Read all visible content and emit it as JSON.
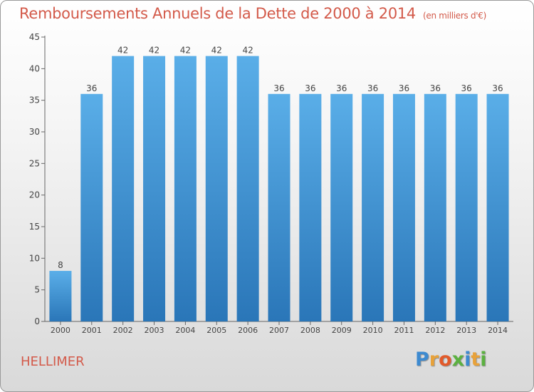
{
  "chart_data": {
    "type": "bar",
    "title": "Remboursements Annuels de la Dette de 2000 à 2014",
    "unit": "(en milliers d'€)",
    "categories": [
      "2000",
      "2001",
      "2002",
      "2003",
      "2004",
      "2005",
      "2006",
      "2007",
      "2008",
      "2009",
      "2010",
      "2011",
      "2012",
      "2013",
      "2014"
    ],
    "values": [
      8,
      36,
      42,
      42,
      42,
      42,
      42,
      36,
      36,
      36,
      36,
      36,
      36,
      36,
      36
    ],
    "ylim": [
      0,
      45
    ],
    "yticks": [
      0,
      5,
      10,
      15,
      20,
      25,
      30,
      35,
      40,
      45
    ],
    "grid": false,
    "bar_color_top": "#5aaee8",
    "bar_color_bottom": "#2a76b8"
  },
  "commune": "HELLIMER",
  "brand": {
    "letters": [
      "P",
      "r",
      "o",
      "x",
      "i",
      "t",
      "i"
    ],
    "colors": [
      "#3d8ad0",
      "#e8a23a",
      "#e25a2a",
      "#5bb140",
      "#3d8ad0",
      "#e8a23a",
      "#5bb140"
    ]
  }
}
